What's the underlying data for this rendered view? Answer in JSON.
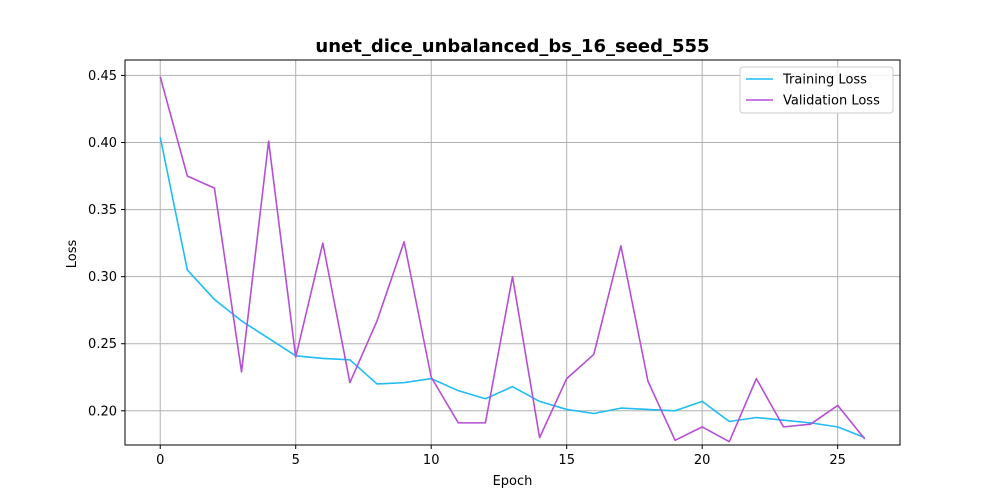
{
  "chart_data": {
    "type": "line",
    "title": "unet_dice_unbalanced_bs_16_seed_555",
    "xlabel": "Epoch",
    "ylabel": "Loss",
    "xlim": [
      -1.3,
      27.3
    ],
    "ylim": [
      0.1745,
      0.4615
    ],
    "xticks": [
      0,
      5,
      10,
      15,
      20,
      25
    ],
    "xtick_labels": [
      "0",
      "5",
      "10",
      "15",
      "20",
      "25"
    ],
    "yticks": [
      0.2,
      0.25,
      0.3,
      0.35,
      0.4,
      0.45
    ],
    "ytick_labels": [
      "0.20",
      "0.25",
      "0.30",
      "0.35",
      "0.40",
      "0.45"
    ],
    "grid": true,
    "legend_position": "top-right",
    "x": [
      0,
      1,
      2,
      3,
      4,
      5,
      6,
      7,
      8,
      9,
      10,
      11,
      12,
      13,
      14,
      15,
      16,
      17,
      18,
      19,
      20,
      21,
      22,
      23,
      24,
      25,
      26
    ],
    "series": [
      {
        "name": "Training Loss",
        "color": "#1fbcf5",
        "values": [
          0.404,
          0.305,
          0.283,
          0.267,
          0.254,
          0.241,
          0.239,
          0.238,
          0.22,
          0.221,
          0.224,
          0.215,
          0.209,
          0.218,
          0.207,
          0.201,
          0.198,
          0.202,
          0.201,
          0.2,
          0.207,
          0.192,
          0.195,
          0.193,
          0.191,
          0.188,
          0.18
        ]
      },
      {
        "name": "Validation Loss",
        "color": "#b54fd6",
        "values": [
          0.449,
          0.375,
          0.366,
          0.229,
          0.401,
          0.24,
          0.325,
          0.221,
          0.267,
          0.326,
          0.225,
          0.191,
          0.191,
          0.3,
          0.18,
          0.224,
          0.242,
          0.323,
          0.222,
          0.178,
          0.188,
          0.177,
          0.224,
          0.188,
          0.19,
          0.204,
          0.179
        ]
      }
    ]
  }
}
